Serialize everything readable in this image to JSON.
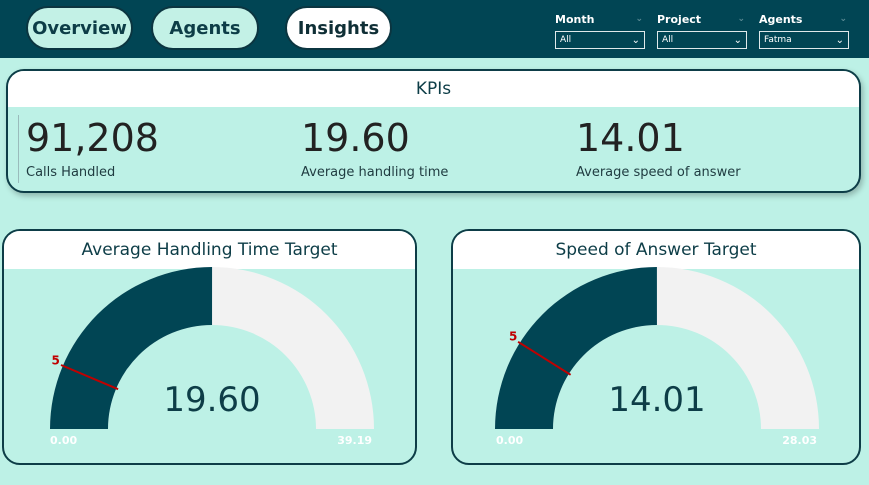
{
  "nav": {
    "tabs": [
      {
        "label": "Overview",
        "active": false
      },
      {
        "label": "Agents",
        "active": false
      },
      {
        "label": "Insights",
        "active": true
      }
    ]
  },
  "filters": [
    {
      "label": "Month",
      "value": "All"
    },
    {
      "label": "Project",
      "value": "All"
    },
    {
      "label": "Agents",
      "value": "Fatma"
    }
  ],
  "kpis": {
    "title": "KPIs",
    "items": [
      {
        "value": "91,208",
        "label": "Calls Handled"
      },
      {
        "value": "19.60",
        "label": "Average handling time"
      },
      {
        "value": "14.01",
        "label": "Average speed of answer"
      }
    ]
  },
  "gauges": [
    {
      "title": "Average Handling Time Target",
      "value_text": "19.60",
      "min_text": "0.00",
      "max_text": "39.19",
      "target_text": "5",
      "value": 19.6,
      "min": 0,
      "max": 39.19,
      "target": 5
    },
    {
      "title": "Speed of Answer Target",
      "value_text": "14.01",
      "min_text": "0.00",
      "max_text": "28.03",
      "target_text": "5",
      "value": 14.01,
      "min": 0,
      "max": 28.03,
      "target": 5
    }
  ],
  "colors": {
    "fill": "#014554",
    "track": "#f2f2f2",
    "target": "#c00000",
    "background": "#bdf1e6"
  }
}
